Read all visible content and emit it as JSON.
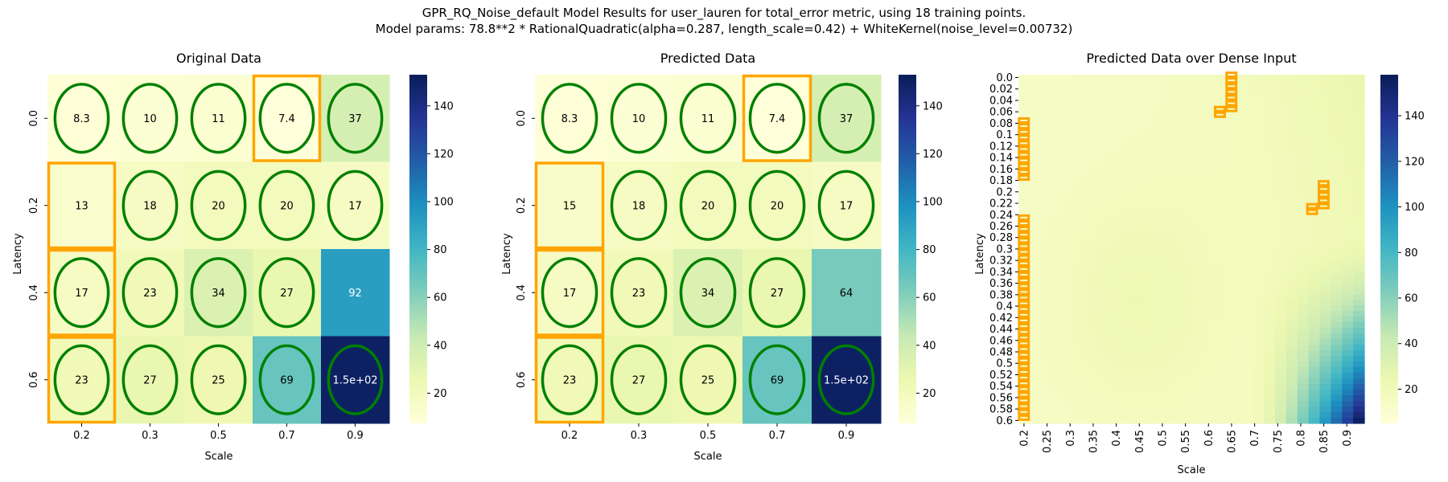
{
  "figure": {
    "title_line1": "GPR_RQ_Noise_default Model Results for user_lauren for total_error metric, using 18 training points.",
    "title_line2": "Model params: 78.8**2 * RationalQuadratic(alpha=0.287, length_scale=0.42) + WhiteKernel(noise_level=0.00732)"
  },
  "colors": {
    "training_circle": "#008000",
    "highlight_box": "#FFA500",
    "colormap": [
      "#ffffd9",
      "#edf8b1",
      "#c7e9b4",
      "#7fcdbb",
      "#41b6c4",
      "#1d91c0",
      "#225ea8",
      "#253494",
      "#081d58"
    ]
  },
  "chart_data": [
    {
      "type": "heatmap",
      "title": "Original Data",
      "xlabel": "Scale",
      "ylabel": "Latency",
      "x_ticks": [
        "0.2",
        "0.3",
        "0.5",
        "0.7",
        "0.9"
      ],
      "y_ticks": [
        "0.0",
        "0.2",
        "0.4",
        "0.6"
      ],
      "values": [
        [
          8.3,
          10,
          11,
          7.4,
          37
        ],
        [
          13,
          18,
          20,
          20,
          17
        ],
        [
          17,
          23,
          34,
          27,
          92
        ],
        [
          23,
          27,
          25,
          69,
          150
        ]
      ],
      "labels": [
        [
          "8.3",
          "10",
          "11",
          "7.4",
          "37"
        ],
        [
          "13",
          "18",
          "20",
          "20",
          "17"
        ],
        [
          "17",
          "23",
          "34",
          "27",
          "92"
        ],
        [
          "23",
          "27",
          "25",
          "69",
          "1.5e+02"
        ]
      ],
      "training_cells": [
        [
          0,
          0
        ],
        [
          0,
          1
        ],
        [
          0,
          2
        ],
        [
          0,
          3
        ],
        [
          0,
          4
        ],
        [
          1,
          1
        ],
        [
          1,
          2
        ],
        [
          1,
          3
        ],
        [
          1,
          4
        ],
        [
          2,
          0
        ],
        [
          2,
          1
        ],
        [
          2,
          2
        ],
        [
          2,
          3
        ],
        [
          3,
          0
        ],
        [
          3,
          1
        ],
        [
          3,
          2
        ],
        [
          3,
          3
        ],
        [
          3,
          4
        ]
      ],
      "highlight_cells": [
        [
          0,
          3
        ],
        [
          1,
          0
        ],
        [
          2,
          0
        ],
        [
          3,
          0
        ]
      ],
      "colorbar_ticks": [
        20,
        40,
        60,
        80,
        100,
        120,
        140
      ],
      "vmin": 7.4,
      "vmax": 153
    },
    {
      "type": "heatmap",
      "title": "Predicted Data",
      "xlabel": "Scale",
      "ylabel": "Latency",
      "x_ticks": [
        "0.2",
        "0.3",
        "0.5",
        "0.7",
        "0.9"
      ],
      "y_ticks": [
        "0.0",
        "0.2",
        "0.4",
        "0.6"
      ],
      "values": [
        [
          8.3,
          10,
          11,
          7.4,
          37
        ],
        [
          15,
          18,
          20,
          20,
          17
        ],
        [
          17,
          23,
          34,
          27,
          64
        ],
        [
          23,
          27,
          25,
          69,
          150
        ]
      ],
      "labels": [
        [
          "8.3",
          "10",
          "11",
          "7.4",
          "37"
        ],
        [
          "15",
          "18",
          "20",
          "20",
          "17"
        ],
        [
          "17",
          "23",
          "34",
          "27",
          "64"
        ],
        [
          "23",
          "27",
          "25",
          "69",
          "1.5e+02"
        ]
      ],
      "training_cells": [
        [
          0,
          0
        ],
        [
          0,
          1
        ],
        [
          0,
          2
        ],
        [
          0,
          3
        ],
        [
          0,
          4
        ],
        [
          1,
          1
        ],
        [
          1,
          2
        ],
        [
          1,
          3
        ],
        [
          1,
          4
        ],
        [
          2,
          0
        ],
        [
          2,
          1
        ],
        [
          2,
          2
        ],
        [
          2,
          3
        ],
        [
          3,
          0
        ],
        [
          3,
          1
        ],
        [
          3,
          2
        ],
        [
          3,
          3
        ],
        [
          3,
          4
        ]
      ],
      "highlight_cells": [
        [
          0,
          3
        ],
        [
          1,
          0
        ],
        [
          2,
          0
        ],
        [
          3,
          0
        ]
      ],
      "colorbar_ticks": [
        20,
        40,
        60,
        80,
        100,
        120,
        140
      ],
      "vmin": 7.4,
      "vmax": 153
    },
    {
      "type": "heatmap",
      "title": "Predicted Data over Dense Input",
      "xlabel": "Scale",
      "ylabel": "Latency",
      "x_ticks": [
        "0.2",
        "0.25",
        "0.3",
        "0.35",
        "0.4",
        "0.45",
        "0.5",
        "0.55",
        "0.6",
        "0.65",
        "0.7",
        "0.75",
        "0.8",
        "0.85",
        "0.9"
      ],
      "y_ticks": [
        "0.0",
        "0.02",
        "0.04",
        "0.06",
        "0.08",
        "0.1",
        "0.12",
        "0.14",
        "0.16",
        "0.18",
        "0.2",
        "0.22",
        "0.24",
        "0.26",
        "0.28",
        "0.3",
        "0.32",
        "0.34",
        "0.36",
        "0.38",
        "0.4",
        "0.42",
        "0.44",
        "0.46",
        "0.48",
        "0.5",
        "0.52",
        "0.54",
        "0.56",
        "0.58",
        "0.6"
      ],
      "x_range": [
        0.2,
        0.95
      ],
      "y_range": [
        0.0,
        0.61
      ],
      "highlight_regions": [
        {
          "x": 0.2,
          "y_from": 0.08,
          "y_to": 0.18
        },
        {
          "x": 0.2,
          "y_from": 0.25,
          "y_to": 0.6
        },
        {
          "x": 0.625,
          "y_from": 0.06,
          "y_to": 0.07
        },
        {
          "x": 0.65,
          "y_from": 0.0,
          "y_to": 0.06
        },
        {
          "x": 0.85,
          "y_from": 0.19,
          "y_to": 0.23
        },
        {
          "x": 0.825,
          "y_from": 0.23,
          "y_to": 0.24
        }
      ],
      "colorbar_ticks": [
        20,
        40,
        60,
        80,
        100,
        120,
        140
      ],
      "vmin": 5,
      "vmax": 158
    }
  ]
}
